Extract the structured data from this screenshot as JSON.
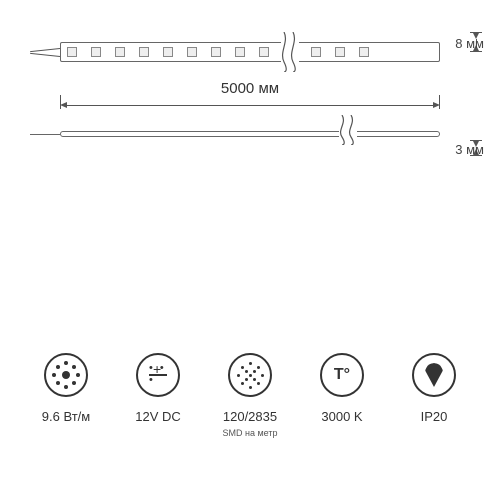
{
  "dimensions": {
    "length_label": "5000 мм",
    "width_label": "8 мм",
    "thickness_label": "3 мм"
  },
  "strip": {
    "led_count_shown": 12
  },
  "specs": {
    "power": {
      "value": "9.6 Вт/м"
    },
    "voltage": {
      "value": "12V DC"
    },
    "density": {
      "value": "120/2835",
      "sub": "SMD на метр"
    },
    "cct": {
      "value": "3000 K"
    },
    "ip": {
      "value": "IP20"
    }
  },
  "colors": {
    "stroke": "#555555",
    "text": "#333333",
    "background": "#ffffff"
  }
}
